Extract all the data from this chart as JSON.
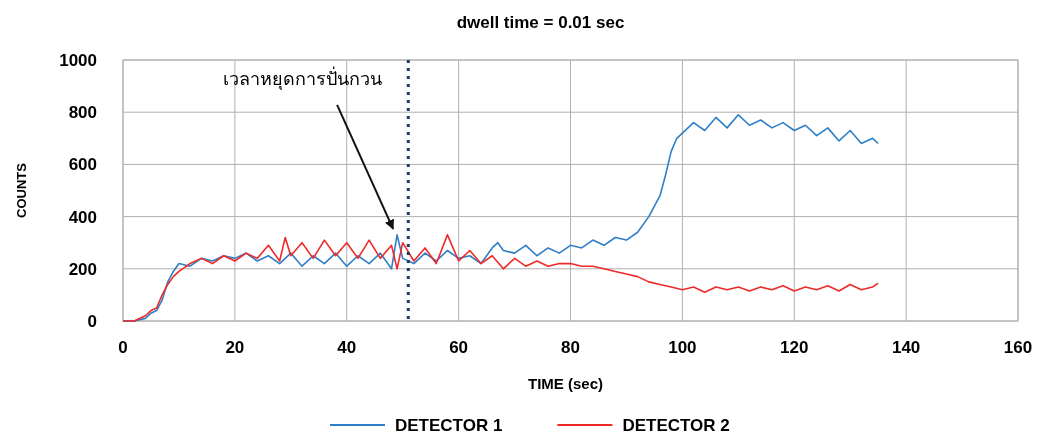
{
  "chart_data": {
    "type": "line",
    "title": "dwell time = 0.01 sec",
    "xlabel": "TIME (sec)",
    "ylabel": "COUNTS",
    "xlim": [
      0,
      160
    ],
    "xticks": [
      0,
      20,
      40,
      60,
      80,
      100,
      120,
      140,
      160
    ],
    "ylim": [
      0,
      1000
    ],
    "yticks": [
      0,
      200,
      400,
      600,
      800,
      1000
    ],
    "grid": true,
    "legend": "bottom",
    "marker": "none",
    "line_style": "solid",
    "series": [
      {
        "name": "DETECTOR 1",
        "color": "#2f7fc8",
        "x": [
          0,
          2,
          4,
          5,
          6,
          7,
          8,
          9,
          10,
          12,
          14,
          16,
          18,
          20,
          22,
          24,
          26,
          28,
          30,
          32,
          34,
          36,
          38,
          40,
          42,
          44,
          46,
          48,
          49,
          50,
          52,
          54,
          56,
          58,
          60,
          62,
          64,
          66,
          67,
          68,
          70,
          72,
          74,
          76,
          78,
          80,
          82,
          84,
          86,
          88,
          90,
          92,
          94,
          96,
          97,
          98,
          99,
          100,
          102,
          104,
          106,
          108,
          110,
          112,
          114,
          116,
          118,
          120,
          122,
          124,
          126,
          128,
          130,
          132,
          134,
          135
        ],
        "values": [
          0,
          0,
          10,
          30,
          40,
          80,
          150,
          190,
          220,
          210,
          240,
          230,
          250,
          240,
          260,
          230,
          250,
          220,
          260,
          210,
          250,
          220,
          260,
          210,
          250,
          220,
          260,
          200,
          330,
          240,
          220,
          260,
          230,
          270,
          240,
          250,
          220,
          280,
          300,
          270,
          260,
          290,
          250,
          280,
          260,
          290,
          280,
          310,
          290,
          320,
          310,
          340,
          400,
          480,
          560,
          650,
          700,
          720,
          760,
          730,
          780,
          740,
          790,
          750,
          770,
          740,
          760,
          730,
          750,
          710,
          740,
          690,
          730,
          680,
          700,
          680
        ]
      },
      {
        "name": "DETECTOR 2",
        "color": "#ee2a2a",
        "x": [
          0,
          2,
          4,
          5,
          6,
          7,
          8,
          9,
          10,
          12,
          14,
          16,
          18,
          20,
          22,
          24,
          26,
          28,
          29,
          30,
          32,
          34,
          36,
          38,
          40,
          42,
          44,
          46,
          48,
          49,
          50,
          52,
          54,
          56,
          58,
          60,
          62,
          64,
          66,
          68,
          70,
          72,
          74,
          76,
          78,
          80,
          82,
          84,
          86,
          88,
          90,
          92,
          94,
          96,
          98,
          100,
          102,
          104,
          106,
          108,
          110,
          112,
          114,
          116,
          118,
          120,
          122,
          124,
          126,
          128,
          130,
          132,
          134,
          135
        ],
        "values": [
          0,
          0,
          20,
          40,
          50,
          100,
          140,
          170,
          190,
          220,
          240,
          220,
          250,
          230,
          260,
          240,
          290,
          230,
          320,
          250,
          300,
          240,
          310,
          250,
          300,
          240,
          310,
          240,
          290,
          200,
          300,
          230,
          280,
          220,
          330,
          230,
          270,
          220,
          250,
          200,
          240,
          210,
          230,
          210,
          220,
          220,
          210,
          210,
          200,
          190,
          180,
          170,
          150,
          140,
          130,
          120,
          130,
          110,
          130,
          120,
          130,
          115,
          130,
          120,
          135,
          115,
          130,
          120,
          135,
          115,
          140,
          120,
          130,
          145
        ]
      }
    ],
    "ref_lines": [
      {
        "axis": "x",
        "value": 51,
        "color": "#1f3864",
        "line_style": "dotted"
      }
    ],
    "annotations": [
      {
        "text": "เวลาหยุดการปั่นกวน",
        "x": 49,
        "y": 330
      }
    ]
  }
}
